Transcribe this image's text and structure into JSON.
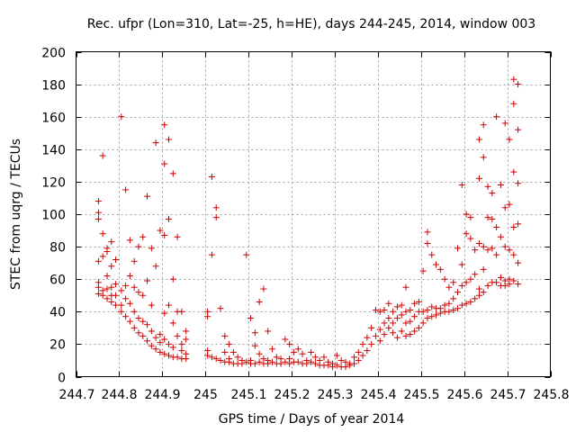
{
  "chart_data": {
    "type": "scatter",
    "title": "Rec. ufpr (Lon=310, Lat=-25, h=HE), days 244-245, 2014, window 003",
    "xlabel": "GPS time / Days of year 2014",
    "ylabel": "STEC from uqrg / TECUs",
    "xlim": [
      244.7,
      245.8
    ],
    "ylim": [
      0,
      200
    ],
    "xticks": [
      244.7,
      244.8,
      244.9,
      245,
      245.1,
      245.2,
      245.3,
      245.4,
      245.5,
      245.6,
      245.7,
      245.8
    ],
    "xtick_labels": [
      "244.7",
      "244.8",
      "244.9",
      "245",
      "245.1",
      "245.2",
      "245.3",
      "245.4",
      "245.5",
      "245.6",
      "245.7",
      "245.8"
    ],
    "yticks": [
      0,
      20,
      40,
      60,
      80,
      100,
      120,
      140,
      160,
      180,
      200
    ],
    "ytick_labels": [
      "0",
      "20",
      "40",
      "60",
      "80",
      "100",
      "120",
      "140",
      "160",
      "180",
      "200"
    ],
    "grid": true,
    "marker": "+",
    "color": "#cc0000",
    "series": [
      {
        "points": [
          [
            244.752,
            108
          ],
          [
            244.752,
            101
          ],
          [
            244.752,
            97
          ],
          [
            244.752,
            71
          ],
          [
            244.752,
            58
          ],
          [
            244.752,
            55
          ],
          [
            244.752,
            51
          ],
          [
            244.762,
            136
          ],
          [
            244.762,
            88
          ],
          [
            244.762,
            74
          ],
          [
            244.762,
            53
          ],
          [
            244.762,
            50
          ],
          [
            244.772,
            79
          ],
          [
            244.772,
            77
          ],
          [
            244.772,
            62
          ],
          [
            244.772,
            54
          ],
          [
            244.772,
            48
          ],
          [
            244.782,
            83
          ],
          [
            244.782,
            68
          ],
          [
            244.782,
            55
          ],
          [
            244.782,
            50
          ],
          [
            244.782,
            46
          ],
          [
            244.792,
            72
          ],
          [
            244.792,
            57
          ],
          [
            244.792,
            50
          ],
          [
            244.792,
            44
          ],
          [
            244.805,
            160
          ],
          [
            244.805,
            53
          ],
          [
            244.805,
            44
          ],
          [
            244.805,
            40
          ],
          [
            244.815,
            115
          ],
          [
            244.815,
            56
          ],
          [
            244.815,
            48
          ],
          [
            244.815,
            37
          ],
          [
            244.825,
            84
          ],
          [
            244.825,
            62
          ],
          [
            244.825,
            45
          ],
          [
            244.825,
            34
          ],
          [
            244.835,
            71
          ],
          [
            244.835,
            55
          ],
          [
            244.835,
            40
          ],
          [
            244.835,
            30
          ],
          [
            244.845,
            80
          ],
          [
            244.845,
            52
          ],
          [
            244.845,
            36
          ],
          [
            244.845,
            27
          ],
          [
            244.855,
            86
          ],
          [
            244.855,
            50
          ],
          [
            244.855,
            34
          ],
          [
            244.855,
            25
          ],
          [
            244.865,
            111
          ],
          [
            244.865,
            59
          ],
          [
            244.865,
            32
          ],
          [
            244.865,
            22
          ],
          [
            244.875,
            79
          ],
          [
            244.875,
            44
          ],
          [
            244.875,
            28
          ],
          [
            244.875,
            19
          ],
          [
            244.885,
            144
          ],
          [
            244.885,
            68
          ],
          [
            244.885,
            24
          ],
          [
            244.885,
            17
          ],
          [
            244.895,
            90
          ],
          [
            244.895,
            26
          ],
          [
            244.895,
            21
          ],
          [
            244.895,
            15
          ],
          [
            244.905,
            155
          ],
          [
            244.905,
            131
          ],
          [
            244.905,
            87
          ],
          [
            244.905,
            39
          ],
          [
            244.905,
            23
          ],
          [
            244.905,
            14
          ],
          [
            244.915,
            146
          ],
          [
            244.915,
            97
          ],
          [
            244.915,
            44
          ],
          [
            244.915,
            20
          ],
          [
            244.915,
            13
          ],
          [
            244.925,
            125
          ],
          [
            244.925,
            60
          ],
          [
            244.925,
            33
          ],
          [
            244.925,
            18
          ],
          [
            244.925,
            12
          ],
          [
            244.935,
            86
          ],
          [
            244.935,
            40
          ],
          [
            244.935,
            25
          ],
          [
            244.935,
            12
          ],
          [
            244.945,
            40
          ],
          [
            244.945,
            20
          ],
          [
            244.945,
            16
          ],
          [
            244.945,
            11
          ],
          [
            244.955,
            28
          ],
          [
            244.955,
            23
          ],
          [
            244.955,
            14
          ],
          [
            244.955,
            11
          ],
          [
            245.005,
            40
          ],
          [
            245.005,
            37
          ],
          [
            245.005,
            16
          ],
          [
            245.005,
            13
          ],
          [
            245.015,
            123
          ],
          [
            245.015,
            75
          ],
          [
            245.015,
            12
          ],
          [
            245.025,
            104
          ],
          [
            245.025,
            98
          ],
          [
            245.025,
            11
          ],
          [
            245.035,
            42
          ],
          [
            245.035,
            10
          ],
          [
            245.045,
            25
          ],
          [
            245.045,
            15
          ],
          [
            245.045,
            9
          ],
          [
            245.055,
            20
          ],
          [
            245.055,
            11
          ],
          [
            245.055,
            9
          ],
          [
            245.065,
            15
          ],
          [
            245.065,
            8
          ],
          [
            245.075,
            12
          ],
          [
            245.075,
            8
          ],
          [
            245.085,
            10
          ],
          [
            245.085,
            8
          ],
          [
            245.095,
            75
          ],
          [
            245.095,
            9
          ],
          [
            245.105,
            36
          ],
          [
            245.105,
            10
          ],
          [
            245.105,
            8
          ],
          [
            245.115,
            27
          ],
          [
            245.115,
            19
          ],
          [
            245.115,
            8
          ],
          [
            245.125,
            46
          ],
          [
            245.125,
            14
          ],
          [
            245.125,
            9
          ],
          [
            245.135,
            54
          ],
          [
            245.135,
            11
          ],
          [
            245.135,
            8
          ],
          [
            245.145,
            28
          ],
          [
            245.145,
            10
          ],
          [
            245.145,
            8
          ],
          [
            245.155,
            17
          ],
          [
            245.155,
            9
          ],
          [
            245.165,
            12
          ],
          [
            245.165,
            8
          ],
          [
            245.175,
            11
          ],
          [
            245.175,
            8
          ],
          [
            245.185,
            23
          ],
          [
            245.185,
            9
          ],
          [
            245.195,
            20
          ],
          [
            245.195,
            11
          ],
          [
            245.195,
            8
          ],
          [
            245.205,
            15
          ],
          [
            245.205,
            9
          ],
          [
            245.215,
            17
          ],
          [
            245.215,
            9
          ],
          [
            245.225,
            14
          ],
          [
            245.225,
            8
          ],
          [
            245.235,
            10
          ],
          [
            245.235,
            8
          ],
          [
            245.245,
            15
          ],
          [
            245.245,
            9
          ],
          [
            245.255,
            12
          ],
          [
            245.255,
            8
          ],
          [
            245.265,
            10
          ],
          [
            245.265,
            7
          ],
          [
            245.275,
            12
          ],
          [
            245.275,
            7
          ],
          [
            245.285,
            9
          ],
          [
            245.285,
            7
          ],
          [
            245.295,
            8
          ],
          [
            245.295,
            6
          ],
          [
            245.305,
            13
          ],
          [
            245.305,
            7
          ],
          [
            245.315,
            10
          ],
          [
            245.315,
            6
          ],
          [
            245.325,
            9
          ],
          [
            245.325,
            6
          ],
          [
            245.335,
            8
          ],
          [
            245.335,
            7
          ],
          [
            245.345,
            12
          ],
          [
            245.345,
            8
          ],
          [
            245.355,
            15
          ],
          [
            245.355,
            10
          ],
          [
            245.365,
            20
          ],
          [
            245.365,
            13
          ],
          [
            245.375,
            24
          ],
          [
            245.375,
            16
          ],
          [
            245.385,
            30
          ],
          [
            245.385,
            20
          ],
          [
            245.395,
            41
          ],
          [
            245.395,
            25
          ],
          [
            245.405,
            40
          ],
          [
            245.405,
            29
          ],
          [
            245.405,
            22
          ],
          [
            245.415,
            41
          ],
          [
            245.415,
            33
          ],
          [
            245.415,
            26
          ],
          [
            245.425,
            45
          ],
          [
            245.425,
            36
          ],
          [
            245.425,
            30
          ],
          [
            245.435,
            40
          ],
          [
            245.435,
            33
          ],
          [
            245.435,
            27
          ],
          [
            245.445,
            43
          ],
          [
            245.445,
            36
          ],
          [
            245.445,
            24
          ],
          [
            245.455,
            44
          ],
          [
            245.455,
            38
          ],
          [
            245.455,
            28
          ],
          [
            245.465,
            55
          ],
          [
            245.465,
            40
          ],
          [
            245.465,
            33
          ],
          [
            245.465,
            25
          ],
          [
            245.475,
            41
          ],
          [
            245.475,
            34
          ],
          [
            245.475,
            26
          ],
          [
            245.485,
            45
          ],
          [
            245.485,
            37
          ],
          [
            245.485,
            28
          ],
          [
            245.495,
            46
          ],
          [
            245.495,
            40
          ],
          [
            245.495,
            30
          ],
          [
            245.505,
            65
          ],
          [
            245.505,
            40
          ],
          [
            245.505,
            33
          ],
          [
            245.515,
            89
          ],
          [
            245.515,
            82
          ],
          [
            245.515,
            41
          ],
          [
            245.515,
            36
          ],
          [
            245.525,
            75
          ],
          [
            245.525,
            43
          ],
          [
            245.525,
            37
          ],
          [
            245.535,
            69
          ],
          [
            245.535,
            42
          ],
          [
            245.535,
            38
          ],
          [
            245.545,
            66
          ],
          [
            245.545,
            42
          ],
          [
            245.545,
            39
          ],
          [
            245.555,
            60
          ],
          [
            245.555,
            44
          ],
          [
            245.555,
            40
          ],
          [
            245.565,
            55
          ],
          [
            245.565,
            45
          ],
          [
            245.565,
            40
          ],
          [
            245.575,
            58
          ],
          [
            245.575,
            48
          ],
          [
            245.575,
            41
          ],
          [
            245.585,
            79
          ],
          [
            245.585,
            52
          ],
          [
            245.585,
            42
          ],
          [
            245.595,
            118
          ],
          [
            245.595,
            69
          ],
          [
            245.595,
            56
          ],
          [
            245.595,
            44
          ],
          [
            245.605,
            100
          ],
          [
            245.605,
            88
          ],
          [
            245.605,
            58
          ],
          [
            245.605,
            45
          ],
          [
            245.615,
            98
          ],
          [
            245.615,
            85
          ],
          [
            245.615,
            60
          ],
          [
            245.615,
            46
          ],
          [
            245.625,
            78
          ],
          [
            245.625,
            63
          ],
          [
            245.625,
            48
          ],
          [
            245.635,
            146
          ],
          [
            245.635,
            122
          ],
          [
            245.635,
            82
          ],
          [
            245.635,
            54
          ],
          [
            245.635,
            50
          ],
          [
            245.645,
            155
          ],
          [
            245.645,
            135
          ],
          [
            245.645,
            80
          ],
          [
            245.645,
            66
          ],
          [
            245.645,
            52
          ],
          [
            245.655,
            117
          ],
          [
            245.655,
            98
          ],
          [
            245.655,
            78
          ],
          [
            245.655,
            56
          ],
          [
            245.665,
            113
          ],
          [
            245.665,
            97
          ],
          [
            245.665,
            79
          ],
          [
            245.665,
            58
          ],
          [
            245.675,
            160
          ],
          [
            245.675,
            92
          ],
          [
            245.675,
            75
          ],
          [
            245.675,
            58
          ],
          [
            245.685,
            118
          ],
          [
            245.685,
            86
          ],
          [
            245.685,
            61
          ],
          [
            245.685,
            56
          ],
          [
            245.695,
            156
          ],
          [
            245.695,
            104
          ],
          [
            245.695,
            80
          ],
          [
            245.695,
            59
          ],
          [
            245.695,
            56
          ],
          [
            245.705,
            146
          ],
          [
            245.705,
            106
          ],
          [
            245.705,
            78
          ],
          [
            245.705,
            60
          ],
          [
            245.705,
            57
          ],
          [
            245.715,
            183
          ],
          [
            245.715,
            168
          ],
          [
            245.715,
            126
          ],
          [
            245.715,
            92
          ],
          [
            245.715,
            75
          ],
          [
            245.715,
            59
          ],
          [
            245.725,
            180
          ],
          [
            245.725,
            152
          ],
          [
            245.725,
            119
          ],
          [
            245.725,
            94
          ],
          [
            245.725,
            70
          ],
          [
            245.725,
            57
          ]
        ]
      }
    ]
  }
}
